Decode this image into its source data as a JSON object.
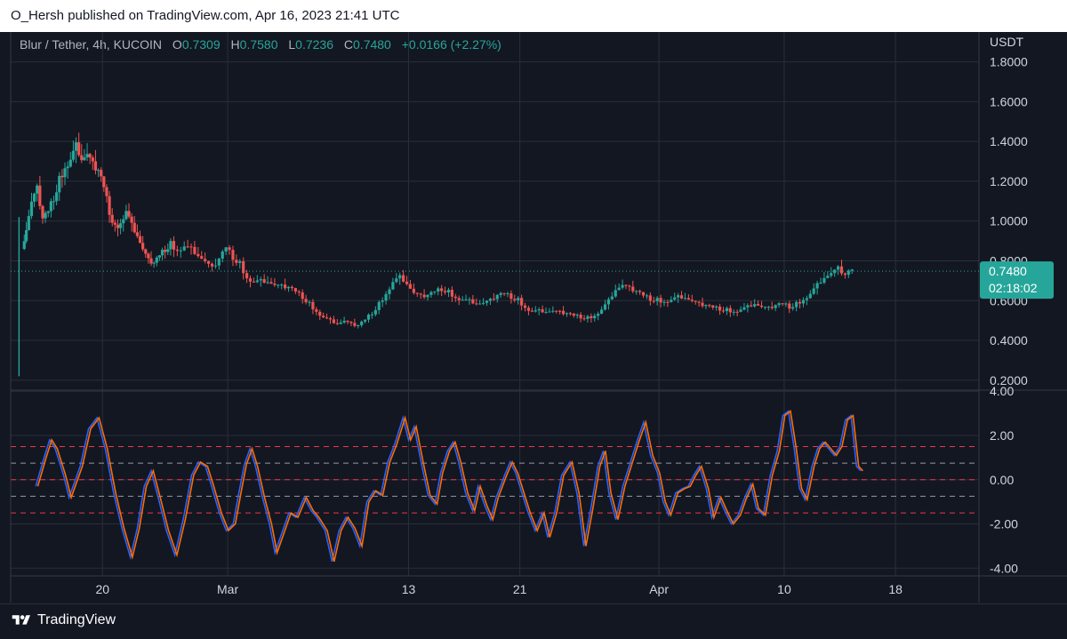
{
  "header": {
    "published": "O_Hersh published on TradingView.com, Apr 16, 2023 21:41 UTC"
  },
  "legend": {
    "symbol": "Blur / Tether, 4h, KUCOIN",
    "o_label": "O",
    "o_value": "0.7309",
    "h_label": "H",
    "h_value": "0.7580",
    "l_label": "L",
    "l_value": "0.7236",
    "c_label": "C",
    "c_value": "0.7480",
    "change": "+0.0166 (+2.27%)"
  },
  "footer": {
    "brand": "TradingView"
  },
  "colors": {
    "background": "#131722",
    "up": "#26a69a",
    "down": "#ef5350",
    "grid": "#2a2e39",
    "osc_fast": "#2962ff",
    "osc_slow": "#ff6d00",
    "level_red": "#f23645",
    "level_grey": "#9598a1"
  },
  "chart_data": [
    {
      "type": "candlestick",
      "ylabel": "USDT",
      "ylim": [
        0.15,
        1.95
      ],
      "yticks": [
        "1.8000",
        "1.6000",
        "1.4000",
        "1.2000",
        "1.0000",
        "0.8000",
        "0.6000",
        "0.4000",
        "0.2000"
      ],
      "ytick_values": [
        1.8,
        1.6,
        1.4,
        1.2,
        1.0,
        0.8,
        0.6,
        0.4,
        0.2
      ],
      "xticks": [
        "20",
        "Mar",
        "13",
        "21",
        "Apr",
        "10",
        "18"
      ],
      "xtick_days": [
        20,
        29,
        42,
        50,
        60,
        69,
        77
      ],
      "x_start_day": 13.4,
      "x_end_day": 83,
      "last_price": "0.7480",
      "last_value": 0.748,
      "countdown": "02:18:02",
      "first_candle": {
        "day": 14.0,
        "open": 0.58,
        "high": 1.02,
        "low": 0.22,
        "close": 0.86
      },
      "close_series": [
        [
          14.3,
          0.86
        ],
        [
          14.6,
          0.95
        ],
        [
          15.0,
          1.1
        ],
        [
          15.4,
          1.16
        ],
        [
          15.8,
          1.0
        ],
        [
          16.2,
          1.04
        ],
        [
          16.6,
          1.12
        ],
        [
          17.0,
          1.2
        ],
        [
          17.4,
          1.28
        ],
        [
          17.8,
          1.32
        ],
        [
          18.2,
          1.38
        ],
        [
          18.6,
          1.3
        ],
        [
          19.0,
          1.34
        ],
        [
          19.4,
          1.28
        ],
        [
          19.8,
          1.24
        ],
        [
          20.2,
          1.16
        ],
        [
          20.6,
          1.05
        ],
        [
          21.0,
          0.96
        ],
        [
          21.4,
          1.0
        ],
        [
          21.8,
          1.06
        ],
        [
          22.2,
          0.98
        ],
        [
          22.6,
          0.92
        ],
        [
          23.0,
          0.86
        ],
        [
          23.4,
          0.8
        ],
        [
          23.8,
          0.78
        ],
        [
          24.2,
          0.82
        ],
        [
          24.6,
          0.86
        ],
        [
          25.0,
          0.88
        ],
        [
          25.5,
          0.86
        ],
        [
          26.0,
          0.88
        ],
        [
          26.5,
          0.86
        ],
        [
          27.0,
          0.82
        ],
        [
          27.5,
          0.8
        ],
        [
          28.0,
          0.76
        ],
        [
          28.5,
          0.8
        ],
        [
          29.0,
          0.86
        ],
        [
          29.5,
          0.82
        ],
        [
          30.0,
          0.78
        ],
        [
          30.5,
          0.72
        ],
        [
          31.0,
          0.7
        ],
        [
          31.5,
          0.7
        ],
        [
          32.0,
          0.69
        ],
        [
          32.5,
          0.68
        ],
        [
          33.0,
          0.67
        ],
        [
          33.5,
          0.66
        ],
        [
          34.0,
          0.64
        ],
        [
          34.5,
          0.62
        ],
        [
          35.0,
          0.58
        ],
        [
          35.5,
          0.55
        ],
        [
          36.0,
          0.52
        ],
        [
          36.5,
          0.5
        ],
        [
          37.0,
          0.48
        ],
        [
          37.5,
          0.5
        ],
        [
          38.0,
          0.48
        ],
        [
          38.5,
          0.47
        ],
        [
          39.0,
          0.5
        ],
        [
          39.5,
          0.54
        ],
        [
          40.0,
          0.58
        ],
        [
          40.5,
          0.64
        ],
        [
          41.0,
          0.7
        ],
        [
          41.5,
          0.72
        ],
        [
          42.0,
          0.68
        ],
        [
          42.5,
          0.64
        ],
        [
          43.0,
          0.62
        ],
        [
          43.5,
          0.62
        ],
        [
          44.0,
          0.64
        ],
        [
          44.5,
          0.66
        ],
        [
          45.0,
          0.64
        ],
        [
          45.5,
          0.62
        ],
        [
          46.0,
          0.61
        ],
        [
          46.5,
          0.6
        ],
        [
          47.0,
          0.58
        ],
        [
          47.5,
          0.59
        ],
        [
          48.0,
          0.6
        ],
        [
          48.5,
          0.62
        ],
        [
          49.0,
          0.63
        ],
        [
          49.5,
          0.62
        ],
        [
          50.0,
          0.6
        ],
        [
          50.5,
          0.57
        ],
        [
          51.0,
          0.55
        ],
        [
          51.5,
          0.55
        ],
        [
          52.0,
          0.54
        ],
        [
          52.5,
          0.55
        ],
        [
          53.0,
          0.54
        ],
        [
          53.5,
          0.53
        ],
        [
          54.0,
          0.52
        ],
        [
          54.5,
          0.52
        ],
        [
          55.0,
          0.51
        ],
        [
          55.5,
          0.53
        ],
        [
          56.0,
          0.56
        ],
        [
          56.5,
          0.6
        ],
        [
          57.0,
          0.65
        ],
        [
          57.5,
          0.68
        ],
        [
          58.0,
          0.66
        ],
        [
          58.5,
          0.64
        ],
        [
          59.0,
          0.62
        ],
        [
          59.5,
          0.61
        ],
        [
          60.0,
          0.6
        ],
        [
          60.5,
          0.6
        ],
        [
          61.0,
          0.61
        ],
        [
          61.5,
          0.62
        ],
        [
          62.0,
          0.61
        ],
        [
          62.5,
          0.6
        ],
        [
          63.0,
          0.58
        ],
        [
          63.5,
          0.57
        ],
        [
          64.0,
          0.56
        ],
        [
          64.5,
          0.56
        ],
        [
          65.0,
          0.55
        ],
        [
          65.5,
          0.55
        ],
        [
          66.0,
          0.56
        ],
        [
          66.5,
          0.57
        ],
        [
          67.0,
          0.58
        ],
        [
          67.5,
          0.57
        ],
        [
          68.0,
          0.56
        ],
        [
          68.5,
          0.57
        ],
        [
          69.0,
          0.58
        ],
        [
          69.5,
          0.57
        ],
        [
          70.0,
          0.58
        ],
        [
          70.5,
          0.61
        ],
        [
          71.0,
          0.64
        ],
        [
          71.5,
          0.68
        ],
        [
          72.0,
          0.71
        ],
        [
          72.5,
          0.74
        ],
        [
          73.0,
          0.76
        ],
        [
          73.5,
          0.72
        ],
        [
          74.0,
          0.75
        ]
      ]
    },
    {
      "type": "line",
      "ylim": [
        -4.35,
        4.05
      ],
      "yticks": [
        "4.00",
        "2.00",
        "0.00",
        "-2.00",
        "-4.00"
      ],
      "ytick_values": [
        4,
        2,
        0,
        -2,
        -4
      ],
      "levels_red": [
        1.5,
        0,
        -1.5
      ],
      "levels_grey": [
        0.75,
        -0.75
      ],
      "x_start_day": 13.4,
      "x_end_day": 83,
      "series": [
        {
          "values": [
            [
              15.2,
              -0.3
            ],
            [
              15.8,
              1.0
            ],
            [
              16.2,
              1.8
            ],
            [
              16.6,
              1.4
            ],
            [
              17.2,
              0.2
            ],
            [
              17.6,
              -0.8
            ],
            [
              18.4,
              0.6
            ],
            [
              19.0,
              2.3
            ],
            [
              19.6,
              2.8
            ],
            [
              20.2,
              1.4
            ],
            [
              20.8,
              -0.6
            ],
            [
              21.4,
              -2.2
            ],
            [
              22.0,
              -3.5
            ],
            [
              22.5,
              -2.2
            ],
            [
              23.0,
              -0.3
            ],
            [
              23.5,
              0.4
            ],
            [
              24.0,
              -0.8
            ],
            [
              24.6,
              -2.3
            ],
            [
              25.2,
              -3.4
            ],
            [
              25.8,
              -1.8
            ],
            [
              26.4,
              0.2
            ],
            [
              26.9,
              0.8
            ],
            [
              27.4,
              0.6
            ],
            [
              27.8,
              -0.2
            ],
            [
              28.4,
              -1.5
            ],
            [
              28.9,
              -2.3
            ],
            [
              29.4,
              -2.0
            ],
            [
              29.8,
              -0.6
            ],
            [
              30.2,
              0.7
            ],
            [
              30.6,
              1.4
            ],
            [
              31.0,
              0.6
            ],
            [
              31.5,
              -0.8
            ],
            [
              32.0,
              -2.0
            ],
            [
              32.4,
              -3.3
            ],
            [
              32.9,
              -2.4
            ],
            [
              33.4,
              -1.5
            ],
            [
              33.9,
              -1.7
            ],
            [
              34.5,
              -0.8
            ],
            [
              35.0,
              -1.4
            ],
            [
              35.4,
              -1.7
            ],
            [
              36.0,
              -2.3
            ],
            [
              36.5,
              -3.7
            ],
            [
              37.0,
              -2.3
            ],
            [
              37.5,
              -1.7
            ],
            [
              38.0,
              -2.2
            ],
            [
              38.5,
              -3.0
            ],
            [
              39.0,
              -1.0
            ],
            [
              39.5,
              -0.5
            ],
            [
              40.0,
              -0.7
            ],
            [
              40.5,
              0.8
            ],
            [
              41.0,
              1.6
            ],
            [
              41.6,
              2.8
            ],
            [
              42.0,
              1.8
            ],
            [
              42.4,
              2.4
            ],
            [
              42.9,
              0.8
            ],
            [
              43.4,
              -0.7
            ],
            [
              43.9,
              -1.1
            ],
            [
              44.3,
              0.3
            ],
            [
              44.8,
              1.3
            ],
            [
              45.2,
              1.7
            ],
            [
              45.6,
              0.8
            ],
            [
              46.1,
              -0.6
            ],
            [
              46.6,
              -1.4
            ],
            [
              47.0,
              -0.3
            ],
            [
              47.5,
              -1.2
            ],
            [
              47.9,
              -1.8
            ],
            [
              48.3,
              -0.8
            ],
            [
              48.9,
              0.2
            ],
            [
              49.3,
              0.8
            ],
            [
              49.7,
              0.3
            ],
            [
              50.2,
              -0.7
            ],
            [
              50.6,
              -1.5
            ],
            [
              51.1,
              -2.3
            ],
            [
              51.6,
              -1.5
            ],
            [
              52.0,
              -2.6
            ],
            [
              52.5,
              -1.5
            ],
            [
              53.0,
              0.2
            ],
            [
              53.6,
              0.8
            ],
            [
              54.1,
              -0.6
            ],
            [
              54.6,
              -3.0
            ],
            [
              55.1,
              -1.3
            ],
            [
              55.6,
              0.6
            ],
            [
              56.0,
              1.3
            ],
            [
              56.4,
              -0.6
            ],
            [
              56.9,
              -1.8
            ],
            [
              57.4,
              -0.3
            ],
            [
              57.9,
              0.7
            ],
            [
              58.4,
              1.7
            ],
            [
              58.9,
              2.6
            ],
            [
              59.4,
              1.1
            ],
            [
              59.9,
              0.3
            ],
            [
              60.3,
              -1.0
            ],
            [
              60.7,
              -1.6
            ],
            [
              61.2,
              -0.6
            ],
            [
              61.7,
              -0.4
            ],
            [
              62.1,
              -0.3
            ],
            [
              62.5,
              0.2
            ],
            [
              62.9,
              0.6
            ],
            [
              63.4,
              -0.4
            ],
            [
              63.8,
              -1.7
            ],
            [
              64.3,
              -0.8
            ],
            [
              64.8,
              -1.5
            ],
            [
              65.2,
              -2.0
            ],
            [
              65.7,
              -1.6
            ],
            [
              66.1,
              -0.9
            ],
            [
              66.6,
              -0.2
            ],
            [
              67.0,
              -1.3
            ],
            [
              67.5,
              -1.6
            ],
            [
              68.0,
              0.2
            ],
            [
              68.5,
              1.3
            ],
            [
              68.9,
              2.9
            ],
            [
              69.3,
              3.1
            ],
            [
              69.7,
              1.5
            ],
            [
              70.1,
              -0.4
            ],
            [
              70.5,
              -0.9
            ],
            [
              71.0,
              0.6
            ],
            [
              71.4,
              1.4
            ],
            [
              71.8,
              1.7
            ],
            [
              72.2,
              1.4
            ],
            [
              72.6,
              1.1
            ],
            [
              73.0,
              1.5
            ],
            [
              73.4,
              2.7
            ],
            [
              73.8,
              2.9
            ],
            [
              74.2,
              0.6
            ],
            [
              74.5,
              0.4
            ]
          ]
        }
      ]
    }
  ]
}
